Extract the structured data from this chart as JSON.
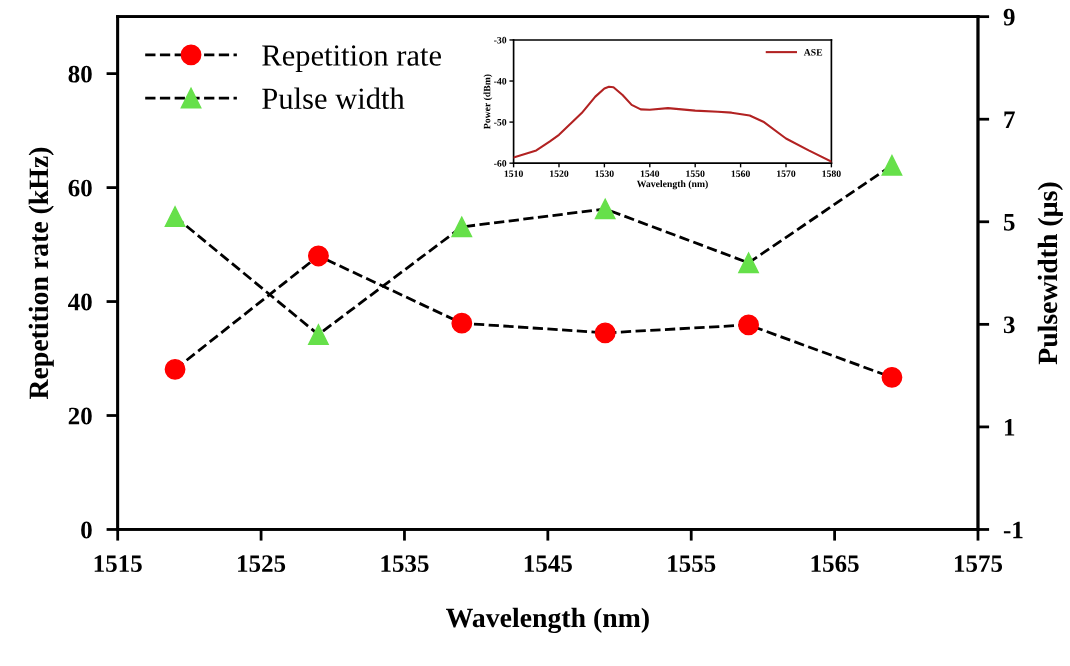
{
  "chart_data": [
    {
      "type": "line",
      "xlabel": "Wavelength (nm)",
      "ylabel": "Repetition rate (kHz)",
      "y2label": "Pulsewidth (µs)",
      "x": [
        1519,
        1529,
        1539,
        1549,
        1559,
        1569
      ],
      "series": [
        {
          "name": "Repetition rate",
          "color": "#ff0000",
          "marker": "circle",
          "values": [
            28.1,
            48.0,
            36.2,
            34.5,
            35.9,
            26.7
          ]
        },
        {
          "name": "Pulse width",
          "color": "#66e04a",
          "marker": "triangle",
          "axis": "y2",
          "values": [
            5.1,
            2.8,
            4.9,
            5.25,
            4.2,
            6.1
          ]
        }
      ],
      "xlim": [
        1515,
        1575
      ],
      "xticks": [
        1515,
        1525,
        1535,
        1545,
        1555,
        1565,
        1575
      ],
      "ylim": [
        0,
        90
      ],
      "yticks": [
        0,
        20,
        40,
        60,
        80
      ],
      "y2lim": [
        -1,
        9
      ],
      "y2ticks": [
        -1,
        1,
        3,
        5,
        7,
        9
      ],
      "line_style": "dashed",
      "legend": "top left",
      "grid": false
    },
    {
      "type": "line",
      "xlabel": "Wavelength (nm)",
      "ylabel": "Power (dBm)",
      "series": [
        {
          "name": "ASE",
          "color": "#b22222",
          "x": [
            1510,
            1515,
            1518,
            1520,
            1525,
            1528,
            1530,
            1531,
            1532,
            1534,
            1536,
            1538,
            1540,
            1544,
            1550,
            1555,
            1558,
            1562,
            1565,
            1570,
            1575,
            1580
          ],
          "values": [
            -58.6,
            -56.9,
            -54.7,
            -53.1,
            -47.8,
            -43.8,
            -41.8,
            -41.4,
            -41.5,
            -43.4,
            -45.8,
            -46.9,
            -47.0,
            -46.6,
            -47.2,
            -47.5,
            -47.7,
            -48.4,
            -49.9,
            -54.0,
            -56.9,
            -59.6
          ]
        }
      ],
      "xlim": [
        1510,
        1580
      ],
      "xticks": [
        1510,
        1520,
        1530,
        1540,
        1550,
        1560,
        1570,
        1580
      ],
      "ylim": [
        -60,
        -30
      ],
      "yticks": [
        -60,
        -50,
        -40,
        -30
      ],
      "line_style": "solid",
      "marker": "none",
      "legend": "top right",
      "grid": false
    }
  ]
}
